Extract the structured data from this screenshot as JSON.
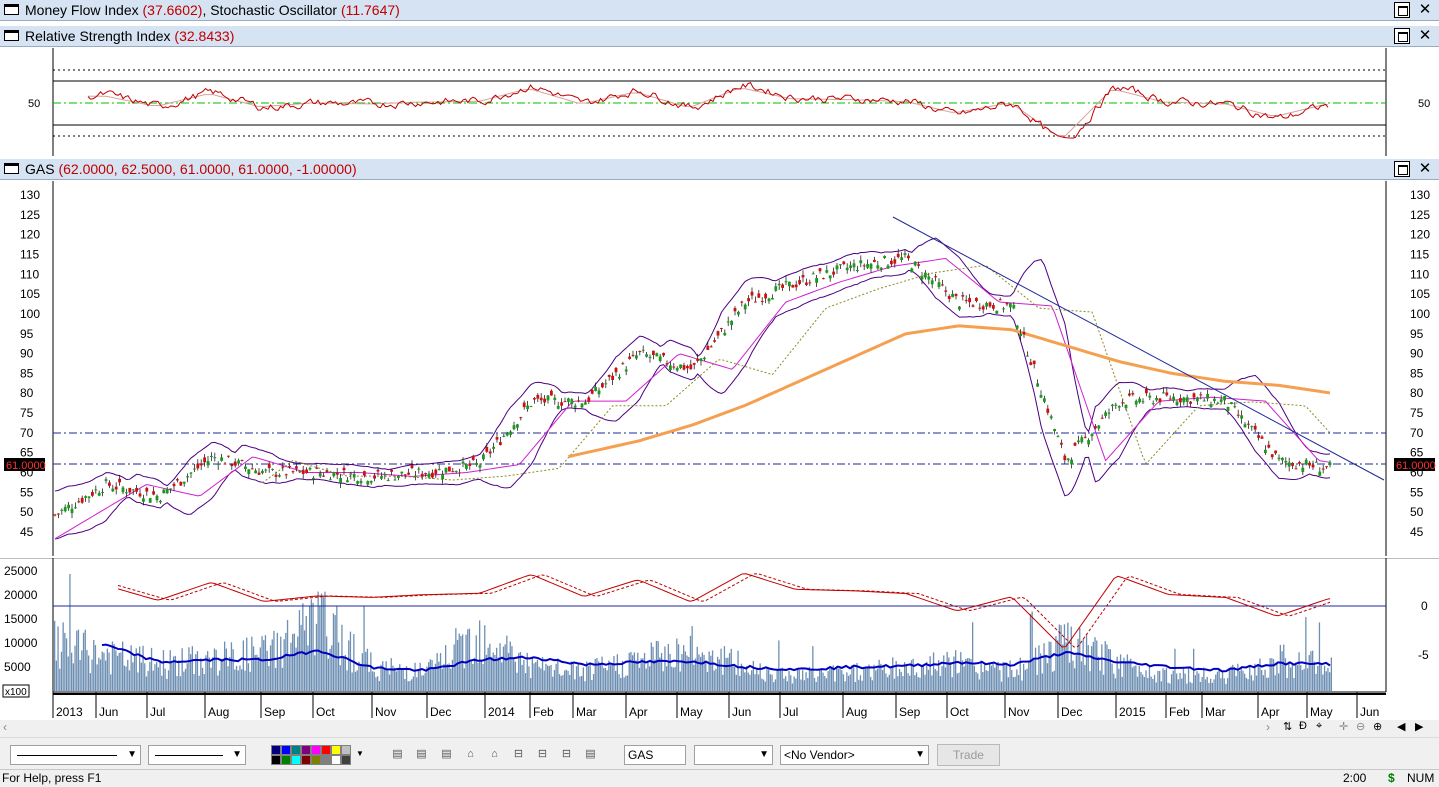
{
  "panes": {
    "mfi": {
      "title": "Money Flow Index",
      "v1": "(37.6602)",
      "sep": ", ",
      "title2": "Stochastic Oscillator",
      "v2": "(11.7647)"
    },
    "rsi": {
      "title": "Relative Strength Index",
      "v1": "(32.8433)",
      "axis_label": "50"
    },
    "price": {
      "title": "GAS",
      "v1": "(62.0000, 62.5000, 61.0000, 61.0000, -1.00000)",
      "last_price_tag": "61.0000",
      "yticks": [
        "130",
        "125",
        "120",
        "115",
        "110",
        "105",
        "100",
        "95",
        "90",
        "85",
        "80",
        "75",
        "70",
        "65",
        "60",
        "55",
        "50",
        "45"
      ]
    },
    "volume": {
      "left_ticks": [
        "25000",
        "20000",
        "15000",
        "10000",
        "5000",
        "0"
      ],
      "right_ticks": [
        "0",
        "-5"
      ],
      "scale_tag": "x100"
    }
  },
  "window_buttons": {
    "restore": "",
    "close": "✕"
  },
  "xaxis": [
    "2013",
    "Jun",
    "Jul",
    "Aug",
    "Sep",
    "Oct",
    "Nov",
    "Dec",
    "2014",
    "Feb",
    "Mar",
    "Apr",
    "May",
    "Jun",
    "Jul",
    "Aug",
    "Sep",
    "Oct",
    "Nov",
    "Dec",
    "2015",
    "Feb",
    "Mar",
    "Apr",
    "May",
    "Jun"
  ],
  "toolbar": {
    "symbol_value": "GAS",
    "vendor_value": "<No Vendor>",
    "trade_label": "Trade",
    "colors": [
      "#000080",
      "#0000ff",
      "#008080",
      "#800080",
      "#ff00ff",
      "#ff0000",
      "#ffff00",
      "#c0c0c0",
      "#000000",
      "#008000",
      "#00ffff",
      "#800000",
      "#808000",
      "#808080",
      "#ffffff",
      "#404040"
    ]
  },
  "status": {
    "help": "For Help, press F1",
    "time": "2:00",
    "dollar": "$",
    "num": "NUM"
  },
  "chart_data": [
    {
      "type": "line",
      "title": "Relative Strength Index",
      "ylim": [
        0,
        100
      ],
      "ytick": [
        50
      ],
      "reference_lines": [
        70,
        50,
        30
      ],
      "series": [
        {
          "name": "RSI",
          "color": "#c00000"
        },
        {
          "name": "RSI MA",
          "color": "#d7a0a0"
        }
      ]
    },
    {
      "type": "candlestick",
      "title": "GAS",
      "ylim": [
        40,
        132
      ],
      "grid": false,
      "horizontal_levels": [
        70,
        61
      ],
      "x": [
        "2013-05",
        "2013-06",
        "2013-07",
        "2013-08",
        "2013-09",
        "2013-10",
        "2013-11",
        "2013-12",
        "2014-01",
        "2014-02",
        "2014-03",
        "2014-04",
        "2014-05",
        "2014-06",
        "2014-07",
        "2014-08",
        "2014-09",
        "2014-10",
        "2014-11",
        "2014-12",
        "2015-01",
        "2015-02",
        "2015-03",
        "2015-04",
        "2015-05"
      ],
      "series": [
        {
          "name": "Close",
          "color": "#c00000",
          "values": [
            49,
            57,
            54,
            64,
            60,
            60,
            59,
            60,
            62,
            78,
            78,
            90,
            86,
            103,
            108,
            112,
            114,
            103,
            102,
            63,
            78,
            79,
            78,
            63,
            61
          ]
        },
        {
          "name": "MA200",
          "color": "#f5a050",
          "values": [
            null,
            null,
            null,
            null,
            null,
            null,
            null,
            null,
            null,
            62,
            65,
            68,
            72,
            77,
            83,
            89,
            95,
            97,
            96,
            92,
            88,
            85,
            83,
            82,
            80
          ]
        }
      ]
    },
    {
      "type": "bar",
      "title": "Volume",
      "ylim": [
        0,
        26000
      ],
      "x": [
        "2013-05",
        "2013-06",
        "2013-07",
        "2013-08",
        "2013-09",
        "2013-10",
        "2013-11",
        "2013-12",
        "2014-01",
        "2014-02",
        "2014-03",
        "2014-04",
        "2014-05",
        "2014-06",
        "2014-07",
        "2014-08",
        "2014-09",
        "2014-10",
        "2014-11",
        "2014-12",
        "2015-01",
        "2015-02",
        "2015-03",
        "2015-04",
        "2015-05"
      ],
      "series": [
        {
          "name": "Volume",
          "color": "#6e8fb4",
          "values": [
            12000,
            9000,
            7000,
            8000,
            10000,
            18000,
            6000,
            5000,
            15000,
            6000,
            5000,
            8000,
            11000,
            6000,
            4000,
            5000,
            6000,
            7000,
            5000,
            12000,
            7000,
            4000,
            4000,
            8000,
            6000
          ]
        },
        {
          "name": "Volume MA",
          "color": "#0000c0",
          "values": [
            null,
            9500,
            6000,
            6500,
            6500,
            8500,
            4800,
            4300,
            6500,
            7000,
            5500,
            6000,
            6200,
            5000,
            4500,
            5000,
            5200,
            6000,
            5500,
            8000,
            6000,
            5000,
            4300,
            5800,
            5600
          ]
        }
      ]
    }
  ]
}
